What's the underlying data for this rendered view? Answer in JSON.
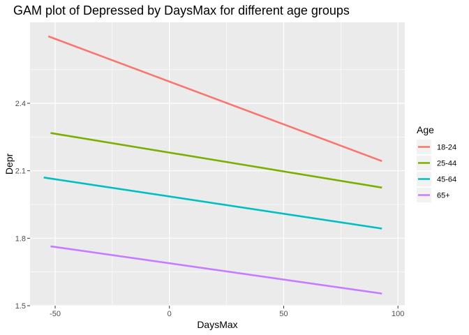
{
  "chart_data": {
    "type": "line",
    "title": "GAM plot of Depressed by DaysMax for different age groups",
    "xlabel": "DaysMax",
    "ylabel": "Depr",
    "xlim": [
      -61,
      103
    ],
    "ylim": [
      1.5,
      2.76
    ],
    "x_ticks": [
      -50,
      0,
      50,
      100
    ],
    "x_tick_labels": [
      "-50",
      "0",
      "50",
      "100"
    ],
    "y_ticks": [
      1.5,
      1.8,
      2.1,
      2.4
    ],
    "y_tick_labels": [
      "1.5",
      "1.8",
      "2.1",
      "2.4"
    ],
    "grid": true,
    "legend": {
      "title": "Age",
      "position": "right"
    },
    "series": [
      {
        "name": "18-24",
        "color": "#F8766D",
        "x": [
          -53,
          93
        ],
        "y": [
          2.698,
          2.143
        ]
      },
      {
        "name": "25-44",
        "color": "#7CAE00",
        "x": [
          -52,
          93
        ],
        "y": [
          2.268,
          2.025
        ]
      },
      {
        "name": "45-64",
        "color": "#00BFC4",
        "x": [
          -55,
          93
        ],
        "y": [
          2.07,
          1.843
        ]
      },
      {
        "name": "65+",
        "color": "#C77CFF",
        "x": [
          -52,
          93
        ],
        "y": [
          1.764,
          1.554
        ]
      }
    ]
  }
}
